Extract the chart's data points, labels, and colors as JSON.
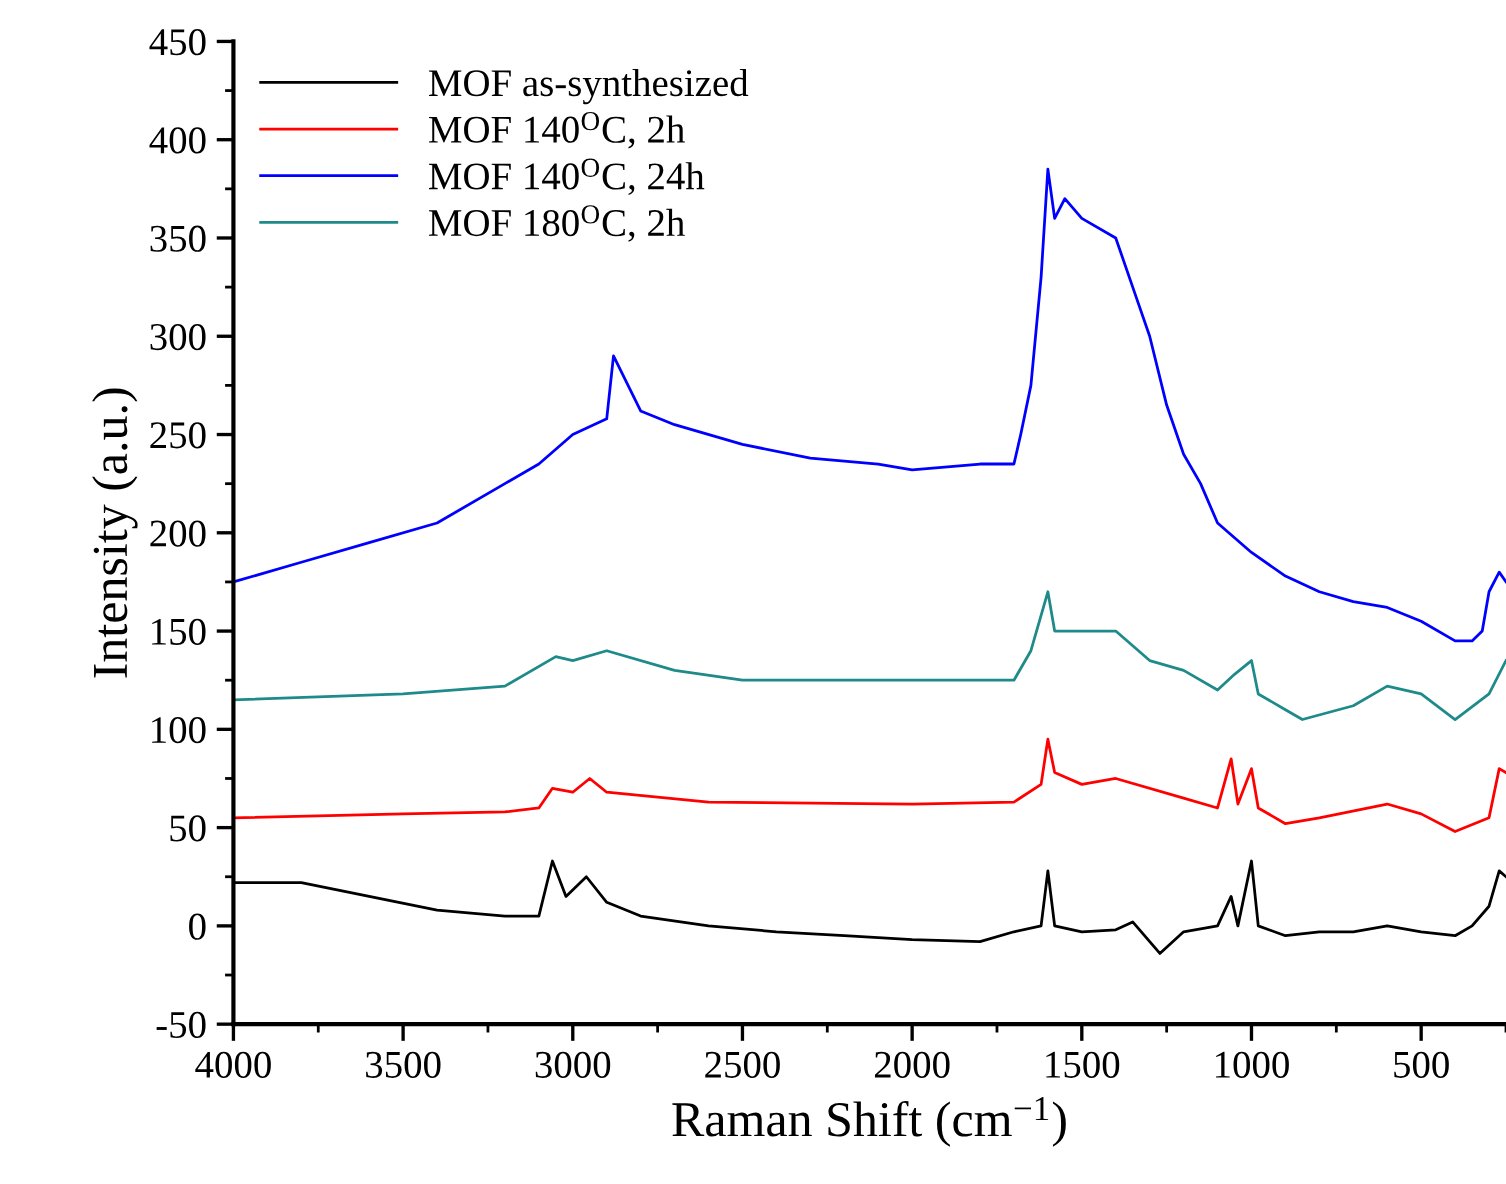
{
  "chart_data": {
    "type": "line",
    "xlabel": "Raman Shift (cm$^{−1}$)",
    "ylabel": "Intensity (a.u.)",
    "xlim": [
      4000,
      250
    ],
    "xticks": [
      4000,
      3500,
      3000,
      2500,
      2000,
      1500,
      1000,
      500
    ],
    "ylim": [
      -50,
      450
    ],
    "yticks": [
      -50,
      0,
      50,
      100,
      150,
      200,
      250,
      300,
      350,
      400,
      450
    ],
    "legend": "top left",
    "grid": false,
    "marker": "none",
    "line_style": "solid",
    "series": [
      {
        "name": "MOF as-synthesized",
        "color": "#000000",
        "x": [
          4000,
          3800,
          3600,
          3400,
          3200,
          3100,
          3060,
          3020,
          2960,
          2900,
          2800,
          2600,
          2400,
          2200,
          2000,
          1800,
          1700,
          1620,
          1600,
          1580,
          1500,
          1400,
          1350,
          1270,
          1200,
          1100,
          1060,
          1040,
          1000,
          980,
          900,
          800,
          700,
          600,
          500,
          400,
          350,
          300,
          270,
          250
        ],
        "values": [
          22,
          22,
          15,
          8,
          5,
          5,
          33,
          15,
          25,
          12,
          5,
          0,
          -3,
          -5,
          -7,
          -8,
          -3,
          0,
          28,
          0,
          -3,
          -2,
          2,
          -14,
          -3,
          0,
          15,
          0,
          33,
          0,
          -5,
          -3,
          -3,
          0,
          -3,
          -5,
          0,
          10,
          28,
          25
        ]
      },
      {
        "name": "MOF 140$^{O}$C, 2h",
        "color": "#ff0000",
        "x": [
          4000,
          3500,
          3200,
          3100,
          3060,
          3000,
          2950,
          2900,
          2600,
          2000,
          1700,
          1620,
          1600,
          1580,
          1500,
          1400,
          1200,
          1100,
          1060,
          1040,
          1000,
          980,
          900,
          800,
          600,
          500,
          400,
          300,
          270,
          250
        ],
        "values": [
          55,
          57,
          58,
          60,
          70,
          68,
          75,
          68,
          63,
          62,
          63,
          72,
          95,
          78,
          72,
          75,
          65,
          60,
          85,
          62,
          80,
          60,
          52,
          55,
          62,
          57,
          48,
          55,
          80,
          78
        ]
      },
      {
        "name": "MOF 140$^{O}$C, 24h",
        "color": "#0000ff",
        "x": [
          4000,
          3800,
          3600,
          3400,
          3200,
          3100,
          3000,
          2900,
          2880,
          2800,
          2700,
          2500,
          2300,
          2100,
          2000,
          1800,
          1700,
          1680,
          1650,
          1620,
          1600,
          1580,
          1550,
          1500,
          1400,
          1350,
          1300,
          1250,
          1200,
          1150,
          1100,
          1000,
          900,
          800,
          700,
          600,
          500,
          400,
          350,
          320,
          300,
          270,
          250
        ],
        "values": [
          175,
          185,
          195,
          205,
          225,
          235,
          250,
          258,
          290,
          262,
          255,
          245,
          238,
          235,
          232,
          235,
          235,
          250,
          275,
          330,
          385,
          360,
          370,
          360,
          350,
          325,
          300,
          265,
          240,
          225,
          205,
          190,
          178,
          170,
          165,
          162,
          155,
          145,
          145,
          150,
          170,
          180,
          175
        ]
      },
      {
        "name": "MOF 180$^{O}$C, 2h",
        "color": "#1f8a8a",
        "x": [
          4000,
          3500,
          3200,
          3050,
          3000,
          2900,
          2700,
          2500,
          2000,
          1700,
          1650,
          1600,
          1580,
          1500,
          1400,
          1300,
          1200,
          1100,
          1050,
          1000,
          980,
          900,
          850,
          700,
          600,
          500,
          400,
          300,
          250
        ],
        "values": [
          115,
          118,
          122,
          137,
          135,
          140,
          130,
          125,
          125,
          125,
          140,
          170,
          150,
          150,
          150,
          135,
          130,
          120,
          128,
          135,
          118,
          110,
          105,
          112,
          122,
          118,
          105,
          118,
          135
        ]
      }
    ]
  }
}
